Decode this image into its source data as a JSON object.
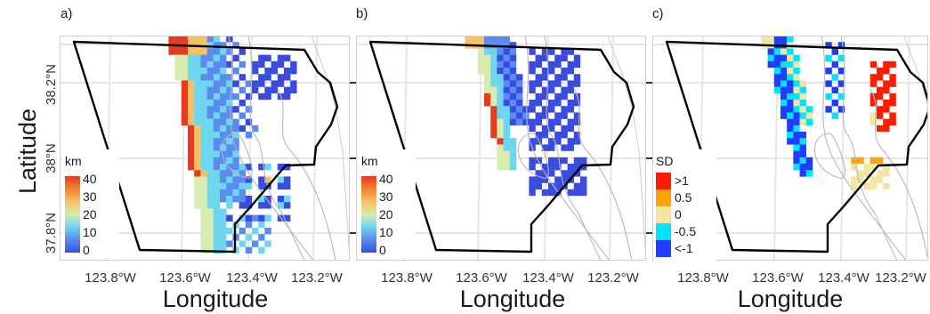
{
  "figure": {
    "y_axis_title": "Latitude",
    "x_axis_title": "Longitude",
    "lat_ticks": [
      "38.2°N",
      "38°N",
      "37.8°N"
    ],
    "lon_ticks": [
      "123.8°W",
      "123.6°W",
      "123.4°W",
      "123.2°W"
    ]
  },
  "panels": [
    {
      "label": "a)",
      "legend": {
        "title": "km",
        "labels": [
          "40",
          "30",
          "20",
          "10",
          "0"
        ],
        "colors": [
          "#ff1a00",
          "#ffb040",
          "#f2e69a",
          "#88e0f0",
          "#4a66e8"
        ]
      }
    },
    {
      "label": "b)",
      "legend": {
        "title": "km",
        "labels": [
          "40",
          "30",
          "20",
          "10",
          "0"
        ],
        "colors": [
          "#ff1a00",
          "#ffb040",
          "#f2e69a",
          "#88e0f0",
          "#4a66e8"
        ]
      }
    },
    {
      "label": "c)",
      "legend": {
        "title": "SD",
        "labels": [
          ">1",
          "0.5",
          "0",
          "-0.5",
          "<-1"
        ],
        "colors": [
          "#ff1a00",
          "#ffa500",
          "#f2e6a0",
          "#00e5ff",
          "#1f3cff"
        ]
      }
    }
  ],
  "colors": {
    "grid": "#e6e6e6",
    "boundary": "#000000",
    "bathymetry": "#b8b8b8",
    "continuous_scale": [
      "#3a4ce0",
      "#5a8cf0",
      "#6fd6f0",
      "#d6ecb0",
      "#f7c060",
      "#f08030",
      "#e83a1e"
    ],
    "sd_scale": [
      "#1f3cff",
      "#00e5ff",
      "#f2e6a0",
      "#ffa500",
      "#ff1a00"
    ]
  }
}
